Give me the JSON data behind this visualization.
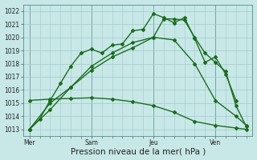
{
  "xlabel": "Pression niveau de la mer( hPa )",
  "ylim": [
    1012.5,
    1022.5
  ],
  "yticks": [
    1013,
    1014,
    1015,
    1016,
    1017,
    1018,
    1019,
    1020,
    1021,
    1022
  ],
  "bg_color": "#c8e8e8",
  "grid_color": "#a0c8c8",
  "xtick_labels": [
    "Mer",
    "Sam",
    "Jeu",
    "Ven"
  ],
  "xtick_positions": [
    0,
    3,
    6,
    9
  ],
  "vline_positions": [
    0,
    3,
    6,
    9
  ],
  "lines": [
    {
      "x": [
        0,
        0.5,
        1,
        1.5,
        2,
        2.5,
        3,
        3.5,
        4,
        4.5,
        5,
        5.5,
        6,
        6.5,
        7,
        7.5,
        8,
        8.5,
        9,
        9.5,
        10
      ],
      "y": [
        1013.0,
        1013.8,
        1015.2,
        1016.5,
        1017.8,
        1018.8,
        1019.1,
        1018.8,
        1019.4,
        1019.5,
        1020.5,
        1020.6,
        1021.8,
        1021.5,
        1021.1,
        1021.5,
        1019.9,
        1018.1,
        1018.5,
        1017.2,
        1015.2
      ],
      "color": "#1a6e1a",
      "lw": 1.0,
      "marker": "D",
      "ms": 2.0
    },
    {
      "x": [
        0,
        1,
        2,
        3,
        4,
        5,
        6,
        6.5,
        7,
        7.5,
        8,
        8.5,
        9,
        9.5,
        10,
        10.5
      ],
      "y": [
        1013.0,
        1014.5,
        1016.2,
        1017.5,
        1018.5,
        1019.2,
        1020.0,
        1021.4,
        1021.4,
        1021.3,
        1020.0,
        1018.8,
        1018.1,
        1017.4,
        1014.8,
        1013.2
      ],
      "color": "#1a6e1a",
      "lw": 1.0,
      "marker": "D",
      "ms": 2.0
    },
    {
      "x": [
        0,
        1,
        2,
        3,
        4,
        5,
        6,
        7,
        8,
        9,
        10,
        10.5
      ],
      "y": [
        1013.0,
        1015.0,
        1016.2,
        1017.8,
        1018.8,
        1019.6,
        1020.0,
        1019.8,
        1018.0,
        1015.2,
        1014.0,
        1013.3
      ],
      "color": "#1a6e1a",
      "lw": 1.0,
      "marker": "D",
      "ms": 2.0
    },
    {
      "x": [
        0,
        1,
        2,
        3,
        4,
        5,
        6,
        7,
        8,
        9,
        10,
        10.5
      ],
      "y": [
        1015.2,
        1015.3,
        1015.35,
        1015.4,
        1015.3,
        1015.1,
        1014.8,
        1014.3,
        1013.6,
        1013.3,
        1013.1,
        1013.0
      ],
      "color": "#1a6e1a",
      "lw": 1.0,
      "marker": "D",
      "ms": 2.0
    }
  ],
  "tick_fontsize": 5.5,
  "xlabel_fontsize": 7.5
}
